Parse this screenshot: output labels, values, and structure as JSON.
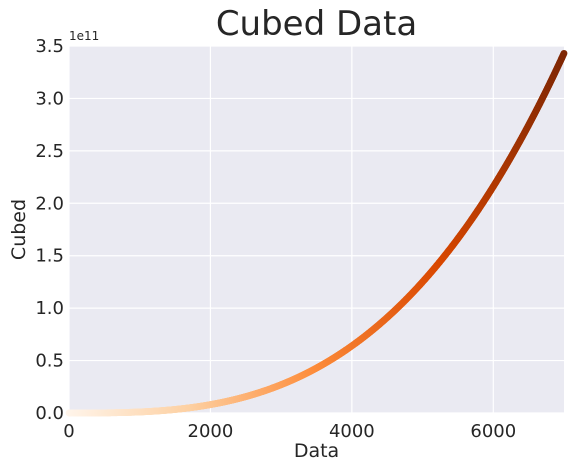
{
  "chart_data": {
    "type": "scatter",
    "title": "Cubed Data",
    "xlabel": "Data",
    "ylabel": "Cubed",
    "y_offset_label": "1e11",
    "xlim": [
      0,
      7000
    ],
    "ylim": [
      0,
      3.5
    ],
    "y_unit_multiplier": 100000000000.0,
    "x_ticks": [
      0,
      2000,
      4000,
      6000
    ],
    "x_tick_labels": [
      "0",
      "2000",
      "4000",
      "6000"
    ],
    "y_ticks": [
      0.0,
      0.5,
      1.0,
      1.5,
      2.0,
      2.5,
      3.0,
      3.5
    ],
    "y_tick_labels": [
      "0.0",
      "0.5",
      "1.0",
      "1.5",
      "2.0",
      "2.5",
      "3.0",
      "3.5"
    ],
    "grid": true,
    "background_color": "#eaeaf2",
    "colormap": "Oranges",
    "colormap_stops": [
      "#fff5eb",
      "#fdd0a2",
      "#fd8d3c",
      "#d94801",
      "#7f2704"
    ],
    "series": [
      {
        "relation": "y = x^3",
        "x": [
          0,
          500,
          1000,
          1500,
          2000,
          2500,
          3000,
          3500,
          4000,
          4500,
          5000,
          5500,
          6000,
          6500,
          7000
        ],
        "y": [
          0,
          0.00125,
          0.01,
          0.03375,
          0.08,
          0.15625,
          0.27,
          0.42875,
          0.64,
          0.91125,
          1.25,
          1.66375,
          2.16,
          2.74625,
          3.43
        ]
      }
    ]
  }
}
